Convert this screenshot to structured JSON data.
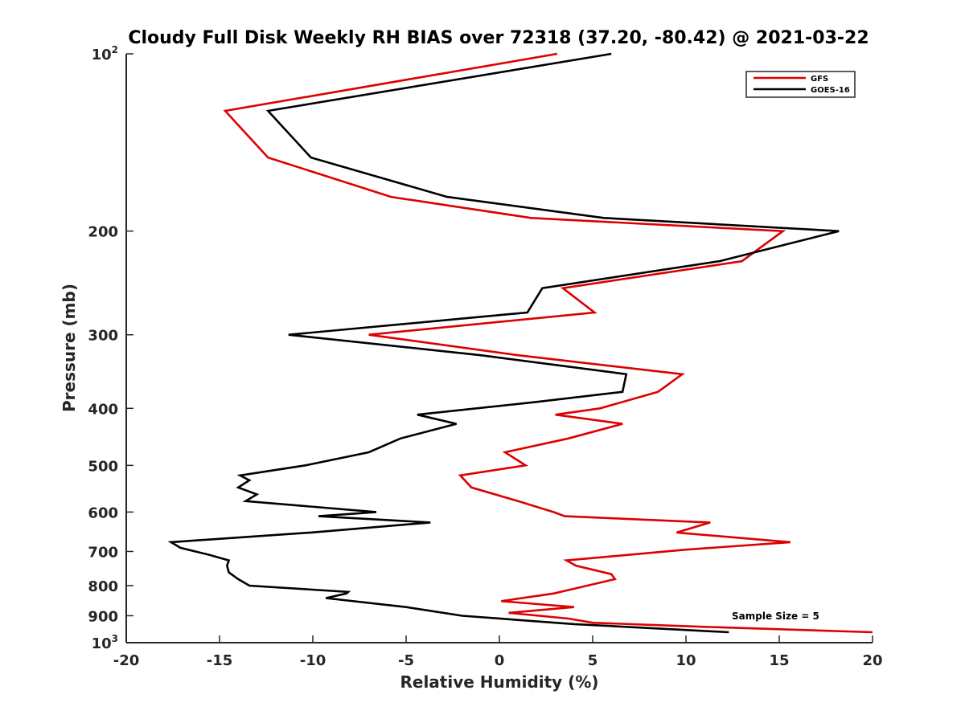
{
  "chart_data": {
    "type": "line",
    "title": "Cloudy Full Disk Weekly RH BIAS over 72318 (37.20, -80.42) @ 2021-03-22",
    "xlabel": "Relative Humidity (%)",
    "ylabel": "Pressure (mb)",
    "xlim": [
      -20,
      20
    ],
    "ylim": [
      100,
      1000
    ],
    "yscale": "log",
    "y_reversed": true,
    "x_ticks": [
      -20,
      -15,
      -10,
      -5,
      0,
      5,
      10,
      15,
      20
    ],
    "x_tick_labels": [
      "-20",
      "-15",
      "-10",
      "-5",
      "0",
      "5",
      "10",
      "15",
      "20"
    ],
    "y_ticks": [
      {
        "value": 100,
        "base": "10",
        "exp": "2"
      },
      {
        "value": 200,
        "label": "200"
      },
      {
        "value": 300,
        "label": "300"
      },
      {
        "value": 400,
        "label": "400"
      },
      {
        "value": 500,
        "label": "500"
      },
      {
        "value": 600,
        "label": "600"
      },
      {
        "value": 700,
        "label": "700"
      },
      {
        "value": 800,
        "label": "800"
      },
      {
        "value": 900,
        "label": "900"
      },
      {
        "value": 1000,
        "base": "10",
        "exp": "3"
      }
    ],
    "legend_position": "top-right",
    "annotation": "Sample Size = 5",
    "series": [
      {
        "name": "GFS",
        "color": "#dd0000",
        "points": [
          [
            3.1,
            100
          ],
          [
            -14.7,
            125
          ],
          [
            -12.4,
            150
          ],
          [
            -5.8,
            175
          ],
          [
            1.7,
            190
          ],
          [
            15.2,
            200
          ],
          [
            13.0,
            225
          ],
          [
            3.4,
            250
          ],
          [
            5.1,
            275
          ],
          [
            -7.0,
            300
          ],
          [
            1.0,
            325
          ],
          [
            9.8,
            350
          ],
          [
            8.5,
            375
          ],
          [
            5.4,
            400
          ],
          [
            3.0,
            410
          ],
          [
            6.6,
            425
          ],
          [
            3.7,
            450
          ],
          [
            0.3,
            475
          ],
          [
            1.4,
            500
          ],
          [
            -2.1,
            520
          ],
          [
            -1.5,
            545
          ],
          [
            1.0,
            575
          ],
          [
            2.9,
            600
          ],
          [
            3.5,
            610
          ],
          [
            11.3,
            625
          ],
          [
            9.5,
            650
          ],
          [
            15.6,
            675
          ],
          [
            10.0,
            695
          ],
          [
            3.6,
            725
          ],
          [
            4.1,
            740
          ],
          [
            6.0,
            765
          ],
          [
            6.2,
            780
          ],
          [
            4.0,
            810
          ],
          [
            2.9,
            825
          ],
          [
            0.1,
            850
          ],
          [
            4.0,
            870
          ],
          [
            0.5,
            890
          ],
          [
            3.7,
            910
          ],
          [
            5.0,
            925
          ],
          [
            11.0,
            940
          ],
          [
            20.0,
            960
          ]
        ]
      },
      {
        "name": "GOES-16",
        "color": "#000000",
        "points": [
          [
            6.0,
            100
          ],
          [
            -12.4,
            125
          ],
          [
            -10.1,
            150
          ],
          [
            -2.8,
            175
          ],
          [
            5.6,
            190
          ],
          [
            18.2,
            200
          ],
          [
            11.8,
            225
          ],
          [
            2.3,
            250
          ],
          [
            1.5,
            275
          ],
          [
            -11.3,
            300
          ],
          [
            -1.0,
            325
          ],
          [
            6.8,
            350
          ],
          [
            6.6,
            375
          ],
          [
            2.0,
            390
          ],
          [
            -4.4,
            410
          ],
          [
            -2.3,
            425
          ],
          [
            -5.3,
            450
          ],
          [
            -7.0,
            475
          ],
          [
            -10.4,
            500
          ],
          [
            -13.9,
            520
          ],
          [
            -13.4,
            530
          ],
          [
            -14.0,
            545
          ],
          [
            -13.0,
            560
          ],
          [
            -13.6,
            575
          ],
          [
            -6.6,
            600
          ],
          [
            -9.7,
            610
          ],
          [
            -3.7,
            625
          ],
          [
            -10.1,
            650
          ],
          [
            -17.6,
            675
          ],
          [
            -17.1,
            690
          ],
          [
            -15.5,
            710
          ],
          [
            -14.5,
            725
          ],
          [
            -14.6,
            740
          ],
          [
            -14.5,
            760
          ],
          [
            -14.0,
            780
          ],
          [
            -13.4,
            800
          ],
          [
            -8.1,
            820
          ],
          [
            -8.2,
            825
          ],
          [
            -9.3,
            840
          ],
          [
            -5.0,
            870
          ],
          [
            -2.0,
            900
          ],
          [
            4.0,
            930
          ],
          [
            12.3,
            960
          ]
        ]
      }
    ]
  }
}
